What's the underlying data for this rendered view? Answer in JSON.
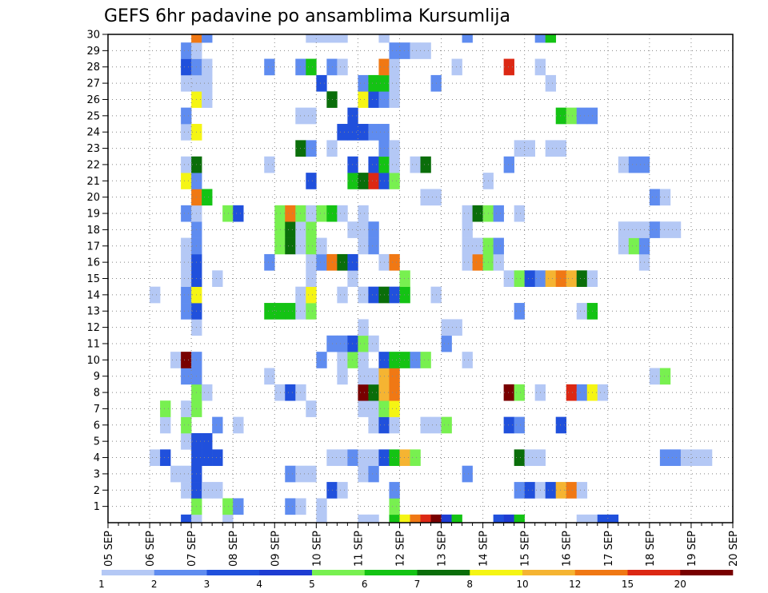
{
  "chart_data": {
    "type": "heatmap",
    "title": "GEFS 6hr padavine po ansamblima Kursumlija",
    "xlabel": "",
    "ylabel": "",
    "x_ticks": [
      "05 SEP",
      "06 SEP",
      "07 SEP",
      "08 SEP",
      "09 SEP",
      "10 SEP",
      "11 SEP",
      "12 SEP",
      "13 SEP",
      "14 SEP",
      "15 SEP",
      "16 SEP",
      "17 SEP",
      "18 SEP",
      "19 SEP",
      "20 SEP"
    ],
    "y_ticks": [
      1,
      2,
      3,
      4,
      5,
      6,
      7,
      8,
      9,
      10,
      11,
      12,
      13,
      14,
      15,
      16,
      17,
      18,
      19,
      20,
      21,
      22,
      23,
      24,
      25,
      26,
      27,
      28,
      29,
      30
    ],
    "xlim": [
      0,
      60
    ],
    "ylim": [
      0,
      30
    ],
    "grid": true,
    "step_hours": 6,
    "members_start": 0,
    "colorbar": {
      "labels": [
        "1",
        "2",
        "3",
        "4",
        "5",
        "6",
        "7",
        "8",
        "10",
        "12",
        "15",
        "20"
      ],
      "colors": [
        "#b4c8f5",
        "#5f8cf0",
        "#2050dc",
        "#1e3cd2",
        "#78f050",
        "#14c314",
        "#0a6e0a",
        "#f5f514",
        "#f5b432",
        "#f07814",
        "#dc2814",
        "#780000"
      ]
    },
    "cells": [
      [
        7,
        0,
        3
      ],
      [
        7,
        2,
        1
      ],
      [
        8,
        0,
        1
      ],
      [
        11,
        0,
        1
      ],
      [
        20,
        0,
        1
      ],
      [
        24,
        0,
        1
      ],
      [
        25,
        0,
        1
      ],
      [
        27,
        0,
        6
      ],
      [
        28,
        0,
        8
      ],
      [
        29,
        0,
        10
      ],
      [
        30,
        0,
        11
      ],
      [
        31,
        0,
        12
      ],
      [
        32,
        0,
        4
      ],
      [
        33,
        0,
        6
      ],
      [
        37,
        0,
        3
      ],
      [
        38,
        0,
        4
      ],
      [
        39,
        0,
        6
      ],
      [
        45,
        0,
        1
      ],
      [
        46,
        0,
        1
      ],
      [
        47,
        0,
        3
      ],
      [
        48,
        0,
        3
      ],
      [
        8,
        1,
        5
      ],
      [
        11,
        1,
        5
      ],
      [
        12,
        1,
        2
      ],
      [
        17,
        1,
        2
      ],
      [
        18,
        1,
        1
      ],
      [
        20,
        1,
        1
      ],
      [
        27,
        1,
        5
      ],
      [
        8,
        2,
        3
      ],
      [
        9,
        2,
        1
      ],
      [
        10,
        2,
        1
      ],
      [
        21,
        2,
        3
      ],
      [
        22,
        2,
        1
      ],
      [
        27,
        2,
        2
      ],
      [
        39,
        2,
        2
      ],
      [
        40,
        2,
        3
      ],
      [
        41,
        2,
        1
      ],
      [
        42,
        2,
        3
      ],
      [
        43,
        2,
        9
      ],
      [
        44,
        2,
        10
      ],
      [
        45,
        2,
        1
      ],
      [
        6,
        3,
        1
      ],
      [
        7,
        3,
        1
      ],
      [
        8,
        3,
        3
      ],
      [
        17,
        3,
        2
      ],
      [
        18,
        3,
        1
      ],
      [
        19,
        3,
        1
      ],
      [
        24,
        3,
        1
      ],
      [
        25,
        3,
        2
      ],
      [
        34,
        3,
        2
      ],
      [
        4,
        4,
        1
      ],
      [
        5,
        4,
        3
      ],
      [
        8,
        4,
        3
      ],
      [
        9,
        4,
        3
      ],
      [
        10,
        4,
        3
      ],
      [
        21,
        4,
        1
      ],
      [
        22,
        4,
        1
      ],
      [
        23,
        4,
        2
      ],
      [
        24,
        4,
        1
      ],
      [
        25,
        4,
        1
      ],
      [
        26,
        4,
        3
      ],
      [
        27,
        4,
        6
      ],
      [
        28,
        4,
        9
      ],
      [
        29,
        4,
        5
      ],
      [
        39,
        4,
        7
      ],
      [
        40,
        4,
        1
      ],
      [
        41,
        4,
        1
      ],
      [
        53,
        4,
        2
      ],
      [
        54,
        4,
        2
      ],
      [
        55,
        4,
        1
      ],
      [
        56,
        4,
        1
      ],
      [
        57,
        4,
        1
      ],
      [
        7,
        5,
        1
      ],
      [
        8,
        5,
        3
      ],
      [
        9,
        5,
        3
      ],
      [
        5,
        6,
        1
      ],
      [
        7,
        6,
        5
      ],
      [
        10,
        6,
        2
      ],
      [
        12,
        6,
        1
      ],
      [
        25,
        6,
        1
      ],
      [
        26,
        6,
        3
      ],
      [
        27,
        6,
        1
      ],
      [
        30,
        6,
        1
      ],
      [
        31,
        6,
        1
      ],
      [
        32,
        6,
        5
      ],
      [
        38,
        6,
        3
      ],
      [
        39,
        6,
        2
      ],
      [
        43,
        6,
        3
      ],
      [
        5,
        7,
        5
      ],
      [
        7,
        7,
        1
      ],
      [
        8,
        7,
        5
      ],
      [
        19,
        7,
        1
      ],
      [
        24,
        7,
        1
      ],
      [
        25,
        7,
        1
      ],
      [
        26,
        7,
        5
      ],
      [
        27,
        7,
        8
      ],
      [
        8,
        8,
        5
      ],
      [
        9,
        8,
        1
      ],
      [
        16,
        8,
        1
      ],
      [
        17,
        8,
        3
      ],
      [
        18,
        8,
        1
      ],
      [
        24,
        8,
        12
      ],
      [
        25,
        8,
        7
      ],
      [
        26,
        8,
        9
      ],
      [
        27,
        8,
        10
      ],
      [
        38,
        8,
        12
      ],
      [
        39,
        8,
        5
      ],
      [
        41,
        8,
        1
      ],
      [
        44,
        8,
        11
      ],
      [
        45,
        8,
        2
      ],
      [
        46,
        8,
        8
      ],
      [
        47,
        8,
        1
      ],
      [
        7,
        9,
        2
      ],
      [
        8,
        9,
        2
      ],
      [
        15,
        9,
        1
      ],
      [
        22,
        9,
        1
      ],
      [
        24,
        9,
        1
      ],
      [
        25,
        9,
        1
      ],
      [
        26,
        9,
        9
      ],
      [
        27,
        9,
        10
      ],
      [
        52,
        9,
        1
      ],
      [
        53,
        9,
        5
      ],
      [
        6,
        10,
        1
      ],
      [
        7,
        10,
        12
      ],
      [
        8,
        10,
        2
      ],
      [
        20,
        10,
        2
      ],
      [
        22,
        10,
        1
      ],
      [
        23,
        10,
        5
      ],
      [
        24,
        10,
        1
      ],
      [
        26,
        10,
        3
      ],
      [
        27,
        10,
        6
      ],
      [
        28,
        10,
        6
      ],
      [
        29,
        10,
        2
      ],
      [
        30,
        10,
        5
      ],
      [
        34,
        10,
        1
      ],
      [
        21,
        11,
        2
      ],
      [
        22,
        11,
        2
      ],
      [
        23,
        11,
        3
      ],
      [
        24,
        11,
        5
      ],
      [
        25,
        11,
        1
      ],
      [
        32,
        11,
        2
      ],
      [
        8,
        12,
        1
      ],
      [
        24,
        12,
        1
      ],
      [
        32,
        12,
        1
      ],
      [
        33,
        12,
        1
      ],
      [
        7,
        13,
        2
      ],
      [
        8,
        13,
        3
      ],
      [
        15,
        13,
        6
      ],
      [
        16,
        13,
        6
      ],
      [
        17,
        13,
        6
      ],
      [
        18,
        13,
        1
      ],
      [
        19,
        13,
        5
      ],
      [
        39,
        13,
        2
      ],
      [
        45,
        13,
        1
      ],
      [
        46,
        13,
        6
      ],
      [
        4,
        14,
        1
      ],
      [
        7,
        14,
        2
      ],
      [
        8,
        14,
        8
      ],
      [
        18,
        14,
        1
      ],
      [
        19,
        14,
        8
      ],
      [
        22,
        14,
        1
      ],
      [
        24,
        14,
        1
      ],
      [
        25,
        14,
        3
      ],
      [
        26,
        14,
        7
      ],
      [
        27,
        14,
        3
      ],
      [
        28,
        14,
        6
      ],
      [
        31,
        14,
        1
      ],
      [
        7,
        15,
        1
      ],
      [
        8,
        15,
        3
      ],
      [
        10,
        15,
        1
      ],
      [
        19,
        15,
        1
      ],
      [
        23,
        15,
        1
      ],
      [
        28,
        15,
        5
      ],
      [
        38,
        15,
        1
      ],
      [
        39,
        15,
        5
      ],
      [
        40,
        15,
        3
      ],
      [
        41,
        15,
        2
      ],
      [
        42,
        15,
        9
      ],
      [
        43,
        15,
        10
      ],
      [
        44,
        15,
        9
      ],
      [
        45,
        15,
        7
      ],
      [
        46,
        15,
        1
      ],
      [
        7,
        16,
        1
      ],
      [
        8,
        16,
        3
      ],
      [
        15,
        16,
        2
      ],
      [
        19,
        16,
        1
      ],
      [
        20,
        16,
        2
      ],
      [
        21,
        16,
        10
      ],
      [
        22,
        16,
        7
      ],
      [
        23,
        16,
        3
      ],
      [
        26,
        16,
        1
      ],
      [
        27,
        16,
        10
      ],
      [
        34,
        16,
        1
      ],
      [
        35,
        16,
        10
      ],
      [
        36,
        16,
        5
      ],
      [
        37,
        16,
        1
      ],
      [
        51,
        16,
        1
      ],
      [
        7,
        17,
        1
      ],
      [
        8,
        17,
        2
      ],
      [
        16,
        17,
        5
      ],
      [
        17,
        17,
        7
      ],
      [
        18,
        17,
        1
      ],
      [
        19,
        17,
        5
      ],
      [
        20,
        17,
        1
      ],
      [
        24,
        17,
        1
      ],
      [
        25,
        17,
        2
      ],
      [
        34,
        17,
        1
      ],
      [
        35,
        17,
        1
      ],
      [
        36,
        17,
        5
      ],
      [
        37,
        17,
        2
      ],
      [
        49,
        17,
        1
      ],
      [
        50,
        17,
        5
      ],
      [
        51,
        17,
        2
      ],
      [
        8,
        18,
        2
      ],
      [
        16,
        18,
        5
      ],
      [
        17,
        18,
        7
      ],
      [
        18,
        18,
        1
      ],
      [
        19,
        18,
        5
      ],
      [
        23,
        18,
        1
      ],
      [
        24,
        18,
        1
      ],
      [
        25,
        18,
        2
      ],
      [
        34,
        18,
        1
      ],
      [
        49,
        18,
        1
      ],
      [
        50,
        18,
        1
      ],
      [
        51,
        18,
        1
      ],
      [
        52,
        18,
        2
      ],
      [
        53,
        18,
        1
      ],
      [
        54,
        18,
        1
      ],
      [
        7,
        19,
        2
      ],
      [
        8,
        19,
        1
      ],
      [
        11,
        19,
        5
      ],
      [
        12,
        19,
        3
      ],
      [
        16,
        19,
        5
      ],
      [
        17,
        19,
        10
      ],
      [
        18,
        19,
        5
      ],
      [
        19,
        19,
        1
      ],
      [
        20,
        19,
        5
      ],
      [
        21,
        19,
        6
      ],
      [
        22,
        19,
        1
      ],
      [
        24,
        19,
        1
      ],
      [
        34,
        19,
        1
      ],
      [
        35,
        19,
        7
      ],
      [
        36,
        19,
        5
      ],
      [
        37,
        19,
        2
      ],
      [
        39,
        19,
        1
      ],
      [
        8,
        20,
        10
      ],
      [
        9,
        20,
        6
      ],
      [
        30,
        20,
        1
      ],
      [
        31,
        20,
        1
      ],
      [
        52,
        20,
        2
      ],
      [
        53,
        20,
        1
      ],
      [
        7,
        21,
        8
      ],
      [
        8,
        21,
        2
      ],
      [
        19,
        21,
        3
      ],
      [
        23,
        21,
        6
      ],
      [
        24,
        21,
        7
      ],
      [
        25,
        21,
        11
      ],
      [
        26,
        21,
        3
      ],
      [
        27,
        21,
        5
      ],
      [
        36,
        21,
        1
      ],
      [
        7,
        22,
        1
      ],
      [
        8,
        22,
        7
      ],
      [
        15,
        22,
        1
      ],
      [
        23,
        22,
        3
      ],
      [
        25,
        22,
        3
      ],
      [
        26,
        22,
        6
      ],
      [
        27,
        22,
        1
      ],
      [
        29,
        22,
        1
      ],
      [
        30,
        22,
        7
      ],
      [
        38,
        22,
        2
      ],
      [
        49,
        22,
        1
      ],
      [
        50,
        22,
        2
      ],
      [
        51,
        22,
        2
      ],
      [
        18,
        23,
        7
      ],
      [
        19,
        23,
        2
      ],
      [
        21,
        23,
        1
      ],
      [
        26,
        23,
        2
      ],
      [
        27,
        23,
        1
      ],
      [
        39,
        23,
        1
      ],
      [
        40,
        23,
        1
      ],
      [
        42,
        23,
        1
      ],
      [
        43,
        23,
        1
      ],
      [
        7,
        24,
        1
      ],
      [
        8,
        24,
        8
      ],
      [
        22,
        24,
        3
      ],
      [
        23,
        24,
        3
      ],
      [
        24,
        24,
        3
      ],
      [
        25,
        24,
        2
      ],
      [
        26,
        24,
        2
      ],
      [
        60,
        24,
        1
      ],
      [
        7,
        25,
        2
      ],
      [
        18,
        25,
        1
      ],
      [
        19,
        25,
        1
      ],
      [
        23,
        25,
        3
      ],
      [
        43,
        25,
        6
      ],
      [
        44,
        25,
        5
      ],
      [
        45,
        25,
        2
      ],
      [
        46,
        25,
        2
      ],
      [
        8,
        26,
        8
      ],
      [
        9,
        26,
        1
      ],
      [
        21,
        26,
        7
      ],
      [
        24,
        26,
        8
      ],
      [
        25,
        26,
        3
      ],
      [
        26,
        26,
        2
      ],
      [
        27,
        26,
        1
      ],
      [
        7,
        27,
        1
      ],
      [
        8,
        27,
        1
      ],
      [
        9,
        27,
        1
      ],
      [
        20,
        27,
        3
      ],
      [
        24,
        27,
        2
      ],
      [
        25,
        27,
        6
      ],
      [
        26,
        27,
        6
      ],
      [
        27,
        27,
        1
      ],
      [
        31,
        27,
        2
      ],
      [
        42,
        27,
        1
      ],
      [
        7,
        28,
        3
      ],
      [
        8,
        28,
        2
      ],
      [
        9,
        28,
        1
      ],
      [
        15,
        28,
        2
      ],
      [
        18,
        28,
        2
      ],
      [
        19,
        28,
        6
      ],
      [
        21,
        28,
        2
      ],
      [
        22,
        28,
        1
      ],
      [
        26,
        28,
        10
      ],
      [
        27,
        28,
        1
      ],
      [
        33,
        28,
        1
      ],
      [
        38,
        28,
        11
      ],
      [
        41,
        28,
        1
      ],
      [
        7,
        29,
        2
      ],
      [
        8,
        29,
        1
      ],
      [
        27,
        29,
        2
      ],
      [
        28,
        29,
        2
      ],
      [
        29,
        29,
        1
      ],
      [
        30,
        29,
        1
      ],
      [
        8,
        30,
        10
      ],
      [
        9,
        30,
        2
      ],
      [
        19,
        30,
        1
      ],
      [
        20,
        30,
        1
      ],
      [
        21,
        30,
        1
      ],
      [
        22,
        30,
        1
      ],
      [
        26,
        30,
        1
      ],
      [
        34,
        30,
        2
      ],
      [
        41,
        30,
        2
      ],
      [
        42,
        30,
        6
      ]
    ]
  }
}
